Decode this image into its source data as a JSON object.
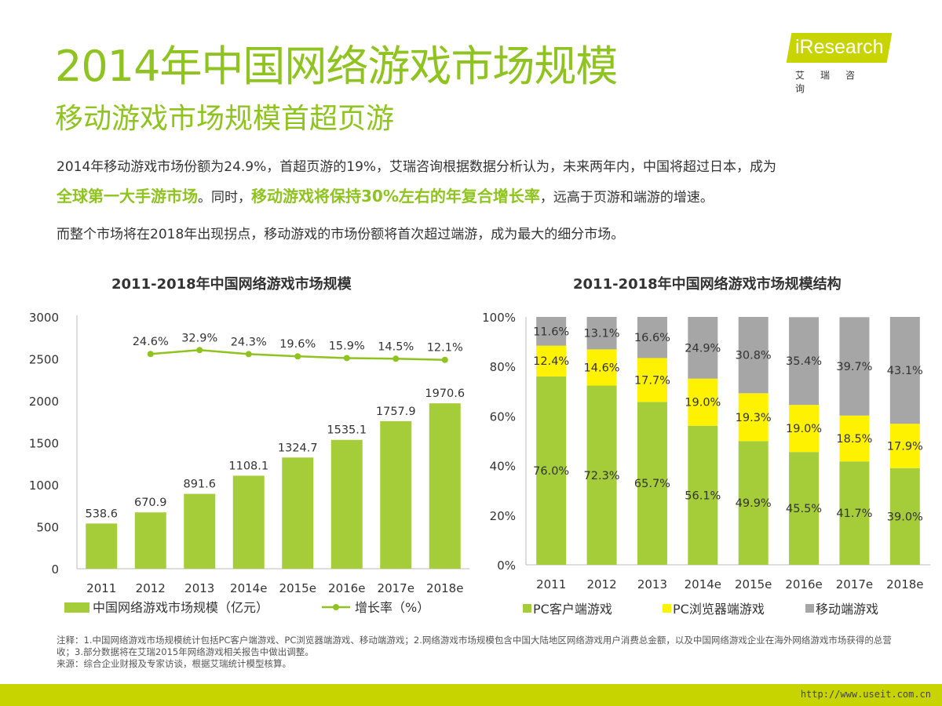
{
  "page": {
    "title": "2014年中国网络游戏市场规模",
    "subtitle": "移动游戏市场规模首超页游",
    "logo": {
      "text": "iResearch",
      "cn": "艾瑞咨询"
    },
    "paragraph": {
      "line1": "2014年移动游戏市场份额为24.9%，首超页游的19%，艾瑞咨询根据数据分析认为，未来两年内，中国将超过日本，成为",
      "line2_hl1": "全球第一大手游市场",
      "line2_mid": "。同时，",
      "line2_hl2": "移动游戏将保持30%左右的年复合增长率",
      "line2_end": "，远高于页游和端游的增速。",
      "line3": "而整个市场将在2018年出现拐点，移动游戏的市场份额将首次超过端游，成为最大的细分市场。"
    },
    "notes": {
      "note": "注释：1.中国网络游戏市场规模统计包括PC客户端游戏、PC浏览器端游戏、移动端游戏；2.网络游戏市场规模包含中国大陆地区网络游戏用户消费总金额，以及中国网络游戏企业在海外网络游戏市场获得的总营收；3.部分数据将在艾瑞2015年网络游戏相关报告中做出调整。",
      "source": "来源：综合企业财报及专家访谈，根据艾瑞统计模型核算。"
    },
    "footer_url": "http://www.useit.com.cn"
  },
  "chart_data": [
    {
      "type": "bar",
      "title": "2011-2018年中国网络游戏市场规模",
      "categories": [
        "2011",
        "2012",
        "2013",
        "2014e",
        "2015e",
        "2016e",
        "2017e",
        "2018e"
      ],
      "series": [
        {
          "name": "中国网络游戏市场规模（亿元）",
          "values": [
            538.6,
            670.9,
            891.6,
            1108.1,
            1324.7,
            1535.1,
            1757.9,
            1970.6
          ],
          "labels": [
            "538.6",
            "670.9",
            "891.6",
            "1108.1",
            "1324.7",
            "1535.1",
            "1757.9",
            "1970.6"
          ]
        },
        {
          "name": "增长率（%）",
          "type": "line",
          "values": [
            null,
            24.6,
            32.9,
            24.3,
            19.6,
            15.9,
            14.5,
            12.1
          ],
          "labels": [
            "",
            "24.6%",
            "32.9%",
            "24.3%",
            "19.6%",
            "15.9%",
            "14.5%",
            "12.1%"
          ]
        }
      ],
      "yticks": [
        "0",
        "500",
        "1000",
        "1500",
        "2000",
        "2500",
        "3000"
      ],
      "ylim": [
        0,
        3000
      ],
      "colors": {
        "bar": "#a5cd39",
        "line": "#8fc31f"
      }
    },
    {
      "type": "bar",
      "stacked": true,
      "title": "2011-2018年中国网络游戏市场规模结构",
      "categories": [
        "2011",
        "2012",
        "2013",
        "2014e",
        "2015e",
        "2016e",
        "2017e",
        "2018e"
      ],
      "series": [
        {
          "name": "PC客户端游戏",
          "values": [
            76.0,
            72.3,
            65.7,
            56.1,
            49.9,
            45.5,
            41.7,
            39.0
          ],
          "labels": [
            "76.0%",
            "72.3%",
            "65.7%",
            "56.1%",
            "49.9%",
            "45.5%",
            "41.7%",
            "39.0%"
          ]
        },
        {
          "name": "PC浏览器端游戏",
          "values": [
            12.4,
            14.6,
            17.7,
            19.0,
            19.3,
            19.0,
            18.5,
            17.9
          ],
          "labels": [
            "12.4%",
            "14.6%",
            "17.7%",
            "19.0%",
            "19.3%",
            "19.0%",
            "18.5%",
            "17.9%"
          ]
        },
        {
          "name": "移动端游戏",
          "values": [
            11.6,
            13.1,
            16.6,
            24.9,
            30.8,
            35.4,
            39.7,
            43.1
          ],
          "labels": [
            "11.6%",
            "13.1%",
            "16.6%",
            "24.9%",
            "30.8%",
            "35.4%",
            "39.7%",
            "43.1%"
          ]
        }
      ],
      "yticks": [
        "0%",
        "20%",
        "40%",
        "60%",
        "80%",
        "100%"
      ],
      "ylim": [
        0,
        100
      ],
      "colors": {
        "pc": "#a5cd39",
        "browser": "#fff200",
        "mobile": "#a6a6a6"
      }
    }
  ]
}
